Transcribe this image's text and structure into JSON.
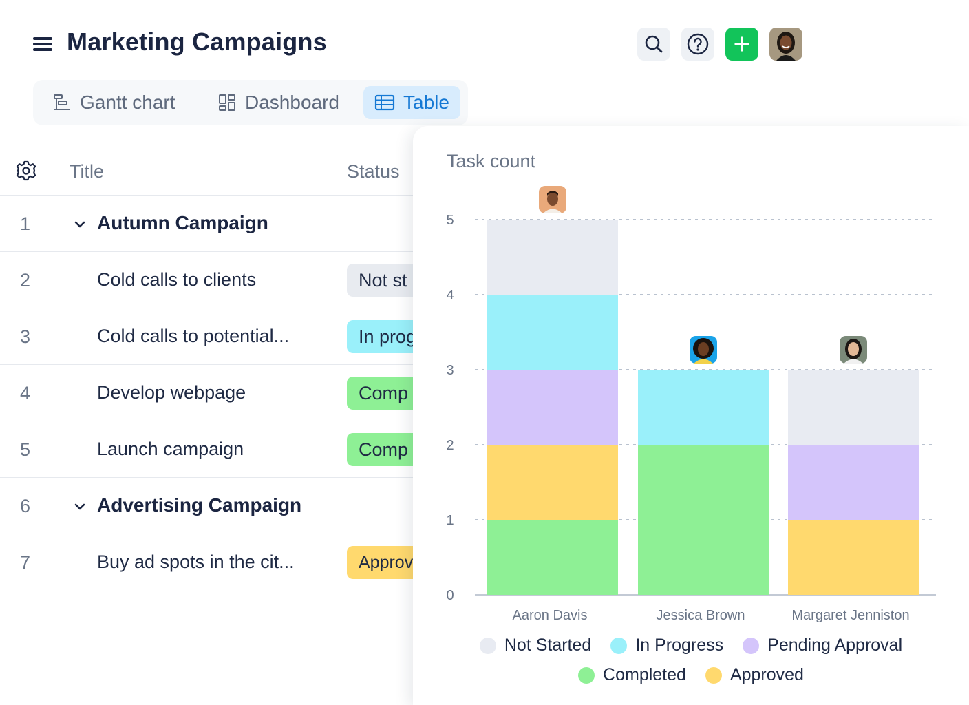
{
  "header": {
    "title": "Marketing Campaigns",
    "icons": [
      "menu-icon",
      "search-icon",
      "help-icon",
      "plus-icon",
      "user-avatar"
    ]
  },
  "tabs": [
    {
      "label": "Gantt chart",
      "icon": "gantt-icon",
      "active": false
    },
    {
      "label": "Dashboard",
      "icon": "dashboard-icon",
      "active": false
    },
    {
      "label": "Table",
      "icon": "table-icon",
      "active": true
    }
  ],
  "table": {
    "columns": [
      "Title",
      "Status"
    ],
    "rows": [
      {
        "num": "1",
        "title": "Autumn Campaign",
        "group": true,
        "status": ""
      },
      {
        "num": "2",
        "title": "Cold calls to clients",
        "group": false,
        "status": "Not st"
      },
      {
        "num": "3",
        "title": "Cold calls to potential...",
        "group": false,
        "status": "In prog"
      },
      {
        "num": "4",
        "title": "Develop webpage",
        "group": false,
        "status": "Comp"
      },
      {
        "num": "5",
        "title": "Launch campaign",
        "group": false,
        "status": "Comp"
      },
      {
        "num": "6",
        "title": "Advertising Campaign",
        "group": true,
        "status": ""
      },
      {
        "num": "7",
        "title": "Buy ad spots in the cit...",
        "group": false,
        "status": "Approv"
      }
    ]
  },
  "colors": {
    "not_started": "#e8ebf2",
    "in_progress": "#9af0fa",
    "pending_approval": "#d4c5fb",
    "completed": "#8ef095",
    "approved": "#ffd96e",
    "accent": "#1478d4",
    "add_button": "#12c45a"
  },
  "chart_data": {
    "type": "bar",
    "stacked": true,
    "title": "Task count",
    "categories": [
      "Aaron Davis",
      "Jessica Brown",
      "Margaret Jenniston"
    ],
    "ylim": [
      0,
      5
    ],
    "yticks": [
      "0",
      "1",
      "2",
      "3",
      "4",
      "5"
    ],
    "grid": true,
    "legend_position": "bottom",
    "series": [
      {
        "name": "Completed",
        "key": "completed",
        "values": [
          1,
          2,
          0
        ]
      },
      {
        "name": "Approved",
        "key": "approved",
        "values": [
          1,
          0,
          1
        ]
      },
      {
        "name": "Pending Approval",
        "key": "pending_approval",
        "values": [
          1,
          0,
          1
        ]
      },
      {
        "name": "In Progress",
        "key": "in_progress",
        "values": [
          1,
          1,
          0
        ]
      },
      {
        "name": "Not Started",
        "key": "not_started",
        "values": [
          1,
          0,
          1
        ]
      }
    ],
    "legend": [
      "Not Started",
      "In Progress",
      "Pending Approval",
      "Completed",
      "Approved"
    ]
  }
}
